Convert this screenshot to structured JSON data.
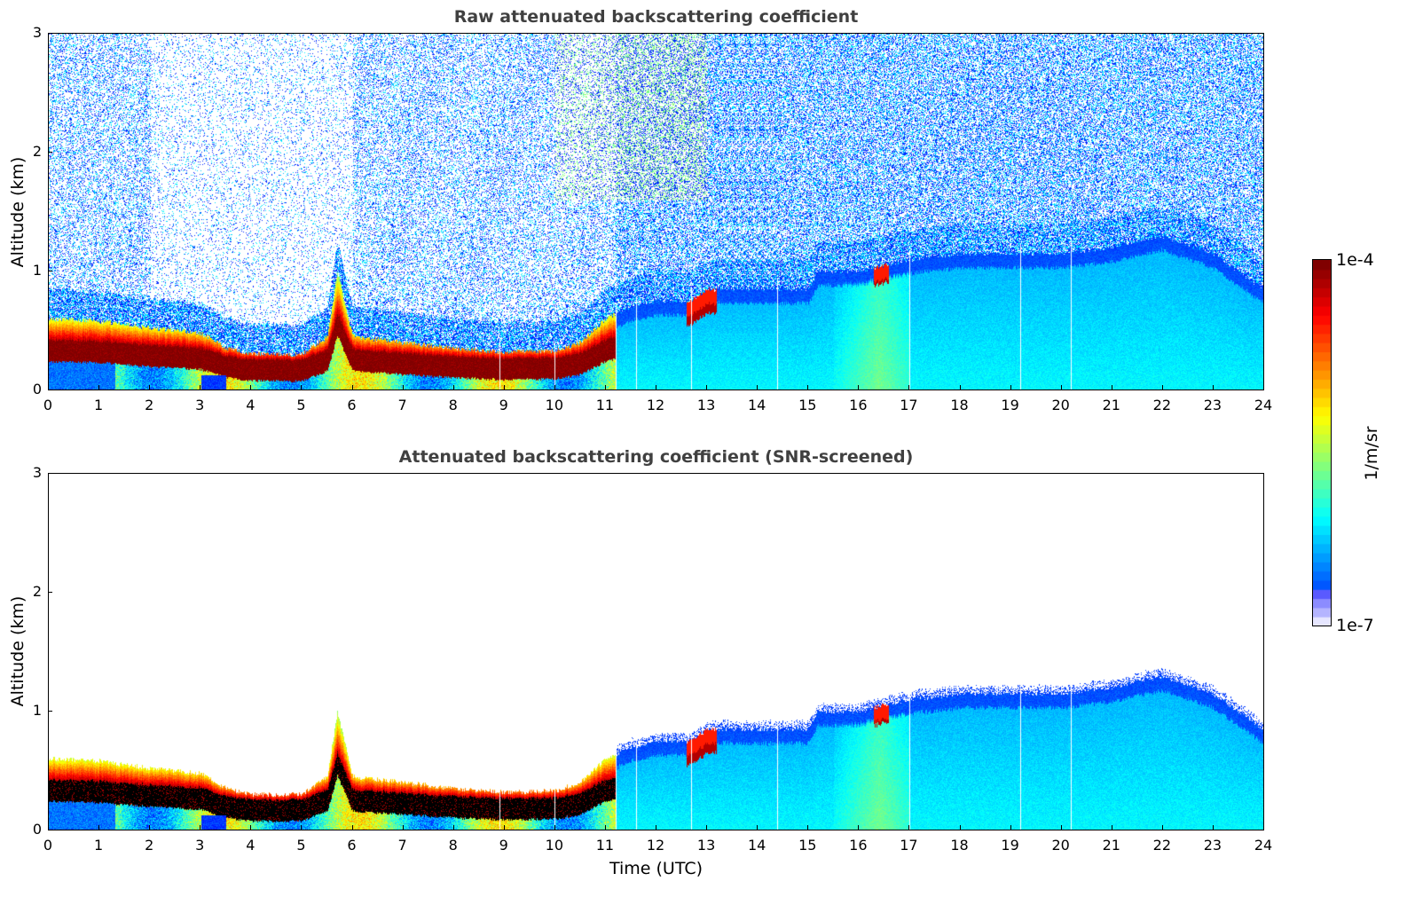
{
  "chart_data": [
    {
      "type": "heatmap",
      "title": "Raw attenuated backscattering coefficient",
      "xlabel": "",
      "ylabel": "Altitude (km)",
      "xlim": [
        0,
        24
      ],
      "ylim": [
        0,
        3
      ],
      "xticks": [
        "0",
        "1",
        "2",
        "3",
        "4",
        "5",
        "6",
        "7",
        "8",
        "9",
        "10",
        "11",
        "12",
        "13",
        "14",
        "15",
        "16",
        "17",
        "18",
        "19",
        "20",
        "21",
        "22",
        "23",
        "24"
      ],
      "yticks": [
        "0",
        "1",
        "2",
        "3"
      ],
      "screened": false,
      "boundary_layer_top_km": {
        "time_utc": [
          0,
          1,
          2,
          3,
          3.5,
          4,
          5,
          5.5,
          5.7,
          6,
          7,
          8,
          9,
          10,
          10.5,
          11,
          11.5,
          12,
          12.7,
          13,
          14,
          15,
          15.2,
          16,
          16.5,
          17,
          18,
          19,
          20,
          21,
          22,
          23,
          24
        ],
        "values": [
          0.6,
          0.58,
          0.52,
          0.48,
          0.35,
          0.3,
          0.3,
          0.45,
          1.0,
          0.45,
          0.4,
          0.35,
          0.32,
          0.33,
          0.4,
          0.6,
          0.7,
          0.75,
          0.75,
          0.85,
          0.85,
          0.85,
          1.0,
          1.0,
          1.05,
          1.1,
          1.15,
          1.15,
          1.15,
          1.2,
          1.3,
          1.15,
          0.85
        ]
      },
      "white_gap_times_utc": [
        8.9,
        10.0,
        11.2,
        11.6,
        12.7,
        14.4,
        17.0,
        19.2,
        20.2
      ]
    },
    {
      "type": "heatmap",
      "title": "Attenuated backscattering coefficient (SNR-screened)",
      "xlabel": "Time (UTC)",
      "ylabel": "Altitude (km)",
      "xlim": [
        0,
        24
      ],
      "ylim": [
        0,
        3
      ],
      "xticks": [
        "0",
        "1",
        "2",
        "3",
        "4",
        "5",
        "6",
        "7",
        "8",
        "9",
        "10",
        "11",
        "12",
        "13",
        "14",
        "15",
        "16",
        "17",
        "18",
        "19",
        "20",
        "21",
        "22",
        "23",
        "24"
      ],
      "yticks": [
        "0",
        "1",
        "2",
        "3"
      ],
      "screened": true,
      "boundary_layer_top_km": {
        "time_utc": [
          0,
          1,
          2,
          3,
          3.5,
          4,
          5,
          5.5,
          5.7,
          6,
          7,
          8,
          9,
          10,
          10.5,
          11,
          11.5,
          12,
          12.7,
          13,
          14,
          15,
          15.2,
          16,
          16.5,
          17,
          18,
          19,
          20,
          21,
          22,
          23,
          24
        ],
        "values": [
          0.6,
          0.58,
          0.52,
          0.48,
          0.35,
          0.3,
          0.3,
          0.45,
          1.0,
          0.45,
          0.4,
          0.35,
          0.32,
          0.33,
          0.4,
          0.6,
          0.7,
          0.75,
          0.75,
          0.85,
          0.85,
          0.85,
          1.0,
          1.0,
          1.05,
          1.1,
          1.15,
          1.15,
          1.15,
          1.2,
          1.3,
          1.15,
          0.85
        ]
      },
      "white_gap_times_utc": [
        8.9,
        10.0,
        11.2,
        11.6,
        12.7,
        14.4,
        17.0,
        19.2,
        20.2
      ]
    }
  ],
  "colorbar": {
    "max_label": "1e-4",
    "min_label": "1e-7",
    "unit": "1/m/sr",
    "colormap": "jet",
    "scale": "log"
  }
}
